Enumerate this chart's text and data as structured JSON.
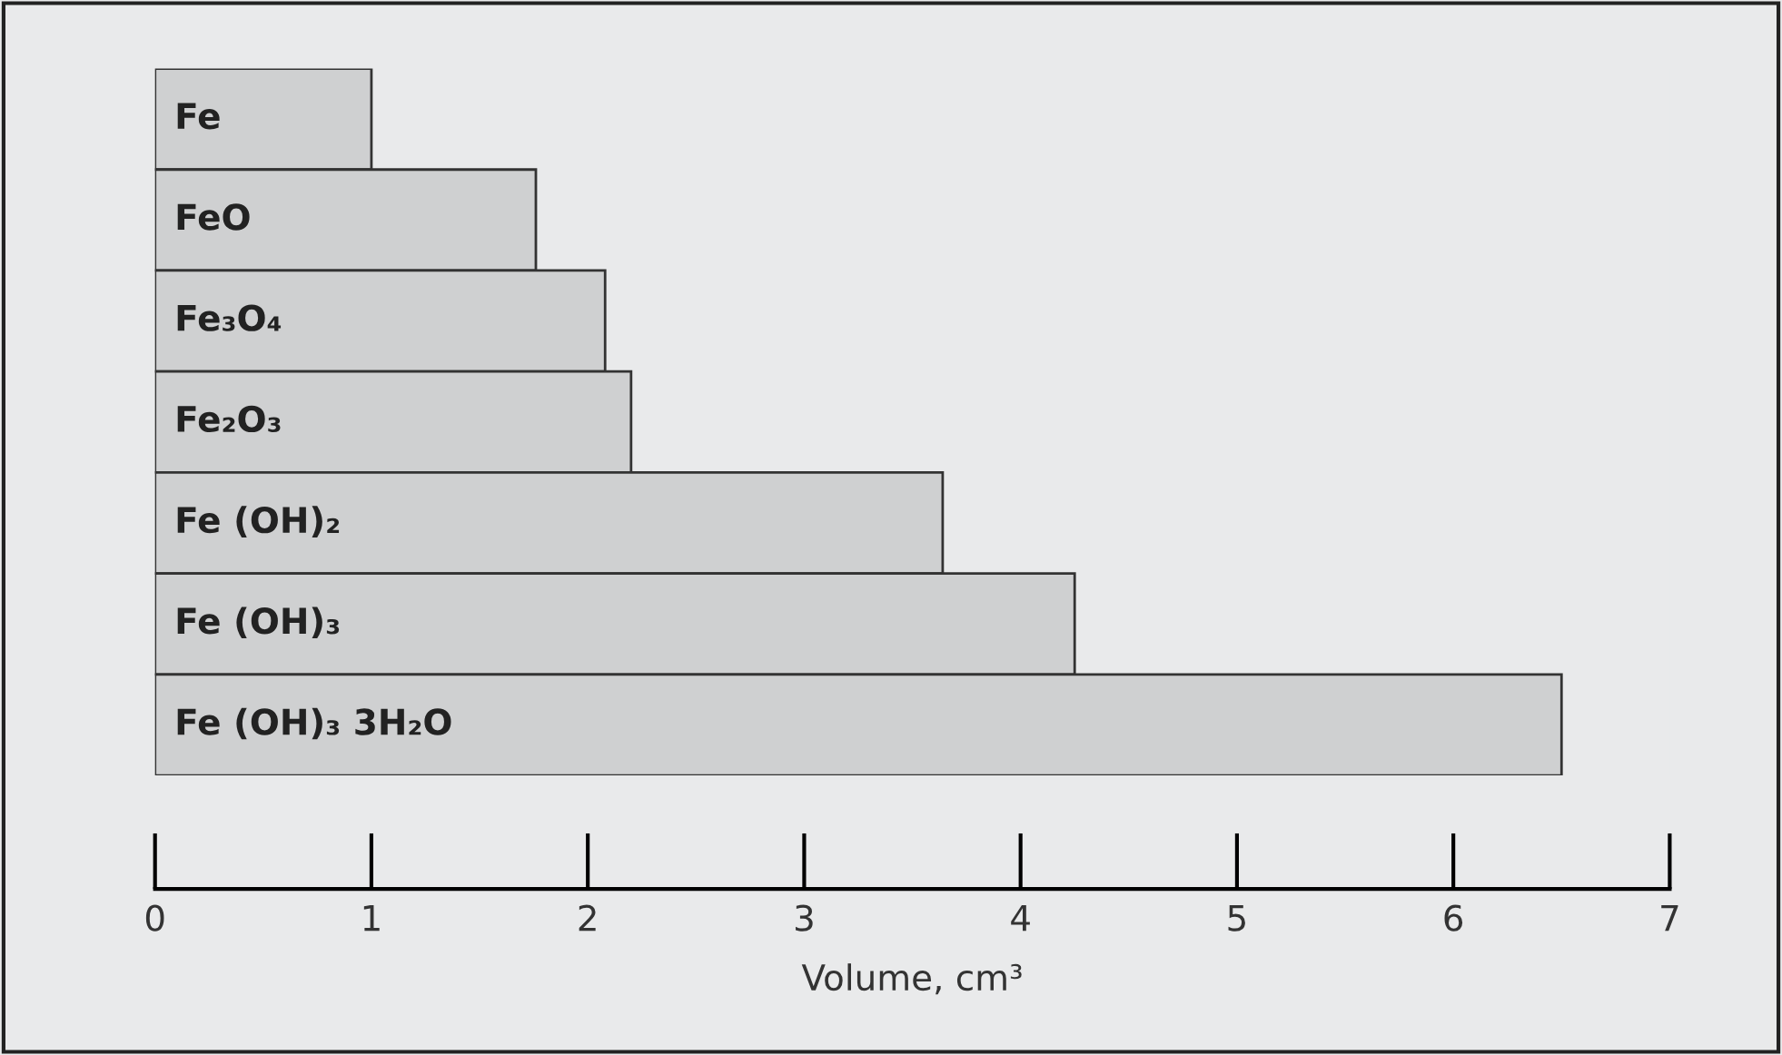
{
  "chart_data": {
    "type": "bar",
    "orientation": "horizontal",
    "xlabel": "Volume, cm³",
    "categories": [
      "Fe",
      "FeO",
      "Fe₃O₄",
      "Fe₂O₃",
      "Fe (OH)₂",
      "Fe (OH)₃",
      "Fe (OH)₃ 3H₂O"
    ],
    "values": [
      1.0,
      1.76,
      2.08,
      2.2,
      3.64,
      4.25,
      6.5
    ],
    "color": "#cfd0d1",
    "xlim": [
      0,
      7
    ],
    "xticks": [
      0,
      1,
      2,
      3,
      4,
      5,
      6,
      7
    ],
    "tick_labels": "x",
    "grid": false,
    "legend": false
  }
}
